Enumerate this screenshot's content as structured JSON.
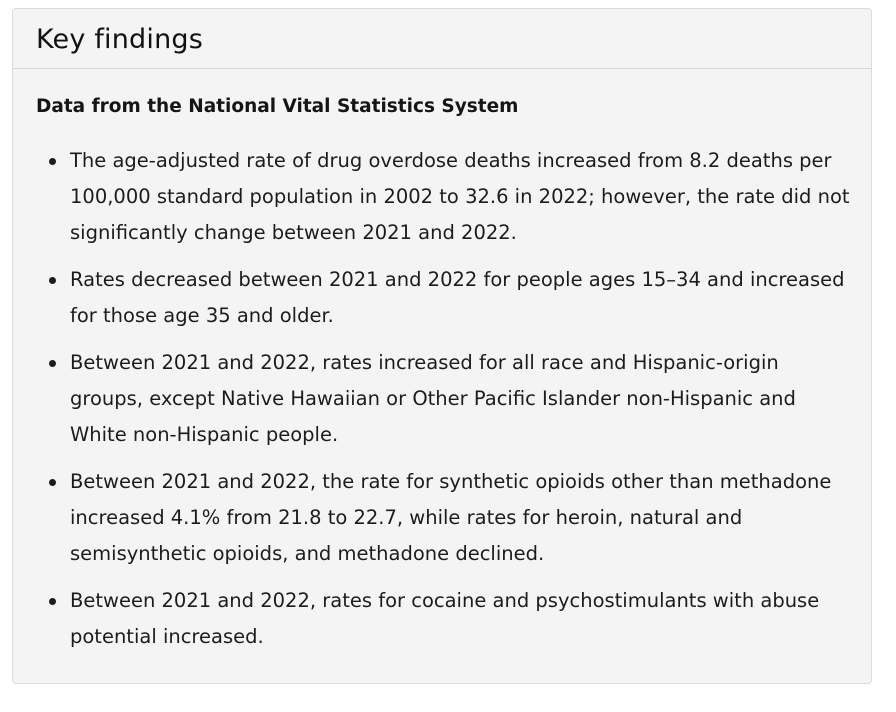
{
  "card": {
    "title": "Key findings",
    "subtitle": "Data from the National Vital Statistics System",
    "findings": [
      "The age-adjusted rate of drug overdose deaths increased from 8.2 deaths per 100,000 standard population in 2002 to 32.6 in 2022; however, the rate did not significantly change between 2021 and 2022.",
      "Rates decreased between 2021 and 2022 for people ages 15–34 and increased for those age 35 and older.",
      "Between 2021 and 2022, rates increased for all race and Hispanic-origin groups, except Native Hawaiian or Other Pacific Islander non-Hispanic and White non-Hispanic people.",
      "Between 2021 and 2022, the rate for synthetic opioids other than methadone increased 4.1% from 21.8 to 22.7, while rates for heroin, natural and semisynthetic opioids, and methadone declined.",
      "Between 2021 and 2022, rates for cocaine and psychostimulants with abuse potential increased."
    ]
  }
}
